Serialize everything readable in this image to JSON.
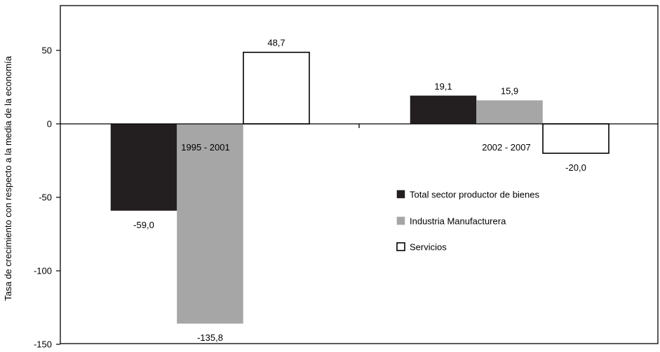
{
  "chart_data": {
    "type": "bar",
    "categories": [
      "1995 - 2001",
      "2002 - 2007"
    ],
    "series": [
      {
        "name": "Total sector productor de bienes",
        "values": [
          -59.0,
          19.1
        ],
        "labels": [
          "-59,0",
          "19,1"
        ],
        "color": "#231f20"
      },
      {
        "name": "Industria Manufacturera",
        "values": [
          -135.8,
          15.9
        ],
        "labels": [
          "-135,8",
          "15,9"
        ],
        "color": "#a6a6a6"
      },
      {
        "name": "Servicios",
        "values": [
          48.7,
          -20.0
        ],
        "labels": [
          "48,7",
          "-20,0"
        ],
        "color": "#ffffff"
      }
    ],
    "ylabel": "Tasa de crecimiento con respecto a la media de la economía",
    "xlabel": "",
    "ylim": [
      -150,
      80
    ],
    "yticks": [
      50,
      0,
      -50,
      -100,
      -150
    ],
    "grid": false,
    "legend_position": "center-right"
  }
}
